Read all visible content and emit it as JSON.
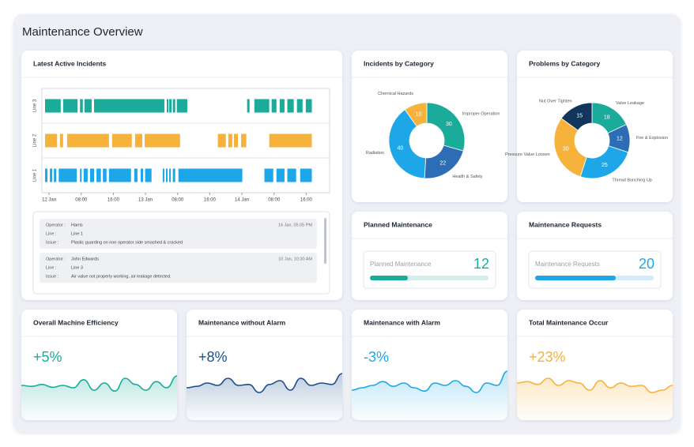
{
  "header": {
    "title": "Maintenance Overview"
  },
  "timeline": {
    "title": "Latest Active Incidents",
    "xlim": [
      -1,
      65.5
    ],
    "xticks": [
      {
        "value": 0,
        "label": "12 Jan"
      },
      {
        "value": 8,
        "label": "08:00"
      },
      {
        "value": 16,
        "label": "16:00"
      },
      {
        "value": 24,
        "label": "13 Jan"
      },
      {
        "value": 32,
        "label": "08:00"
      },
      {
        "value": 40,
        "label": "16:00"
      },
      {
        "value": 48,
        "label": "14 Jan"
      },
      {
        "value": 56,
        "label": "08:00"
      },
      {
        "value": 64,
        "label": "16:00"
      }
    ],
    "series": [
      {
        "name": "Line 3",
        "color": "#1aab9b",
        "segments": [
          [
            -1.0,
            2.9
          ],
          [
            3.5,
            7.1
          ],
          [
            7.7,
            8.4
          ],
          [
            8.8,
            10.6
          ],
          [
            11.2,
            28.7
          ],
          [
            29.3,
            29.7
          ],
          [
            29.9,
            30.5
          ],
          [
            30.8,
            31.4
          ],
          [
            31.8,
            34.4
          ],
          [
            49.3,
            49.9
          ],
          [
            51.1,
            54.8
          ],
          [
            55.4,
            56.6
          ],
          [
            57.4,
            58.6
          ],
          [
            59.3,
            60.9
          ],
          [
            61.7,
            63.1
          ],
          [
            63.9,
            65.4
          ]
        ]
      },
      {
        "name": "Line 2",
        "color": "#f6b23a",
        "segments": [
          [
            -1.0,
            2.0
          ],
          [
            2.7,
            3.5
          ],
          [
            4.5,
            14.9
          ],
          [
            15.7,
            20.6
          ],
          [
            21.4,
            23.2
          ],
          [
            23.8,
            32.6
          ],
          [
            42.0,
            44.0
          ],
          [
            44.6,
            45.6
          ],
          [
            46.0,
            47.0
          ],
          [
            47.8,
            49.1
          ],
          [
            54.8,
            65.4
          ]
        ]
      },
      {
        "name": "Line 1",
        "color": "#1ea7e8",
        "segments": [
          [
            -1.0,
            -0.4
          ],
          [
            0.2,
            0.8
          ],
          [
            1.2,
            1.8
          ],
          [
            2.4,
            6.9
          ],
          [
            7.7,
            8.1
          ],
          [
            8.6,
            9.6
          ],
          [
            10.2,
            11.2
          ],
          [
            11.8,
            12.9
          ],
          [
            13.4,
            14.3
          ],
          [
            14.9,
            20.4
          ],
          [
            21.2,
            22.0
          ],
          [
            22.8,
            23.4
          ],
          [
            23.9,
            25.5
          ],
          [
            28.3,
            28.7
          ],
          [
            29.1,
            29.5
          ],
          [
            29.9,
            30.3
          ],
          [
            30.8,
            31.4
          ],
          [
            32.2,
            48.1
          ],
          [
            53.6,
            55.8
          ],
          [
            56.6,
            58.6
          ],
          [
            59.3,
            61.5
          ],
          [
            62.5,
            65.4
          ]
        ]
      }
    ]
  },
  "incidents": {
    "labels": {
      "operator": "Operator :",
      "line": "Line :",
      "issue": "Issue :"
    },
    "items": [
      {
        "operator": "Harris",
        "time": "14 Jan, 05:05 PM",
        "line": "Line 1",
        "issue": "Plastic guarding on non operator side smashed & cracked"
      },
      {
        "operator": "John Edwards",
        "time": "10 Jan, 10:30 AM",
        "line": "Line 3",
        "issue": "Air value not properly working, air leakage detected."
      }
    ]
  },
  "chart_data": [
    {
      "type": "pie",
      "title": "Incidents by Category",
      "categories": [
        "Improper Operation",
        "Health & Safety",
        "Radiation",
        "Chemical Hazards"
      ],
      "values": [
        30,
        22,
        40,
        10
      ],
      "colors": [
        "#1aab9b",
        "#2d6db5",
        "#1ea7e8",
        "#f6b23a"
      ]
    },
    {
      "type": "pie",
      "title": "Problems by Category",
      "categories": [
        "Valve Leakage",
        "Fire & Explosion",
        "Thread Bunching Up",
        "Pressure Value Loosen",
        "Nut Over Tighten"
      ],
      "values": [
        18,
        12,
        25,
        30,
        15
      ],
      "colors": [
        "#1aab9b",
        "#2d6db5",
        "#1ea7e8",
        "#f6b23a",
        "#12355b"
      ]
    }
  ],
  "progress_cards": [
    {
      "title": "Planned Maintenance",
      "label": "Planned Maintenance",
      "value": 12,
      "progress": 32,
      "color": "#1aab9b",
      "track": "#d4eeeb"
    },
    {
      "title": "Maintenance Requests",
      "label": "Maintenance Requests",
      "value": 20,
      "progress": 68,
      "color": "#1ea7e8",
      "track": "#d2edf9"
    }
  ],
  "trend_cards": [
    {
      "title": "Overall Machine Efficiency",
      "value": "+5%",
      "color": "#1aab9b",
      "ylim": [
        0,
        100
      ],
      "values": [
        40,
        38,
        42,
        36,
        40,
        35,
        52,
        30,
        45,
        28,
        55,
        42,
        30,
        48,
        35,
        60
      ]
    },
    {
      "title": "Maintenance without Alarm",
      "value": "+8%",
      "color": "#1d4f8f",
      "ylim": [
        0,
        100
      ],
      "values": [
        35,
        38,
        45,
        40,
        55,
        40,
        42,
        25,
        42,
        50,
        30,
        55,
        40,
        45,
        42,
        65
      ]
    },
    {
      "title": "Maintenance with Alarm",
      "value": "-3%",
      "color": "#1ea7e8",
      "ylim": [
        0,
        100
      ],
      "values": [
        30,
        35,
        40,
        48,
        38,
        45,
        35,
        28,
        45,
        40,
        50,
        38,
        25,
        45,
        40,
        70
      ]
    },
    {
      "title": "Total Maintenance Occur",
      "value": "+23%",
      "color": "#f6b23a",
      "ylim": [
        0,
        100
      ],
      "values": [
        45,
        48,
        42,
        55,
        40,
        50,
        45,
        30,
        50,
        35,
        45,
        38,
        40,
        25,
        30,
        40
      ]
    }
  ]
}
